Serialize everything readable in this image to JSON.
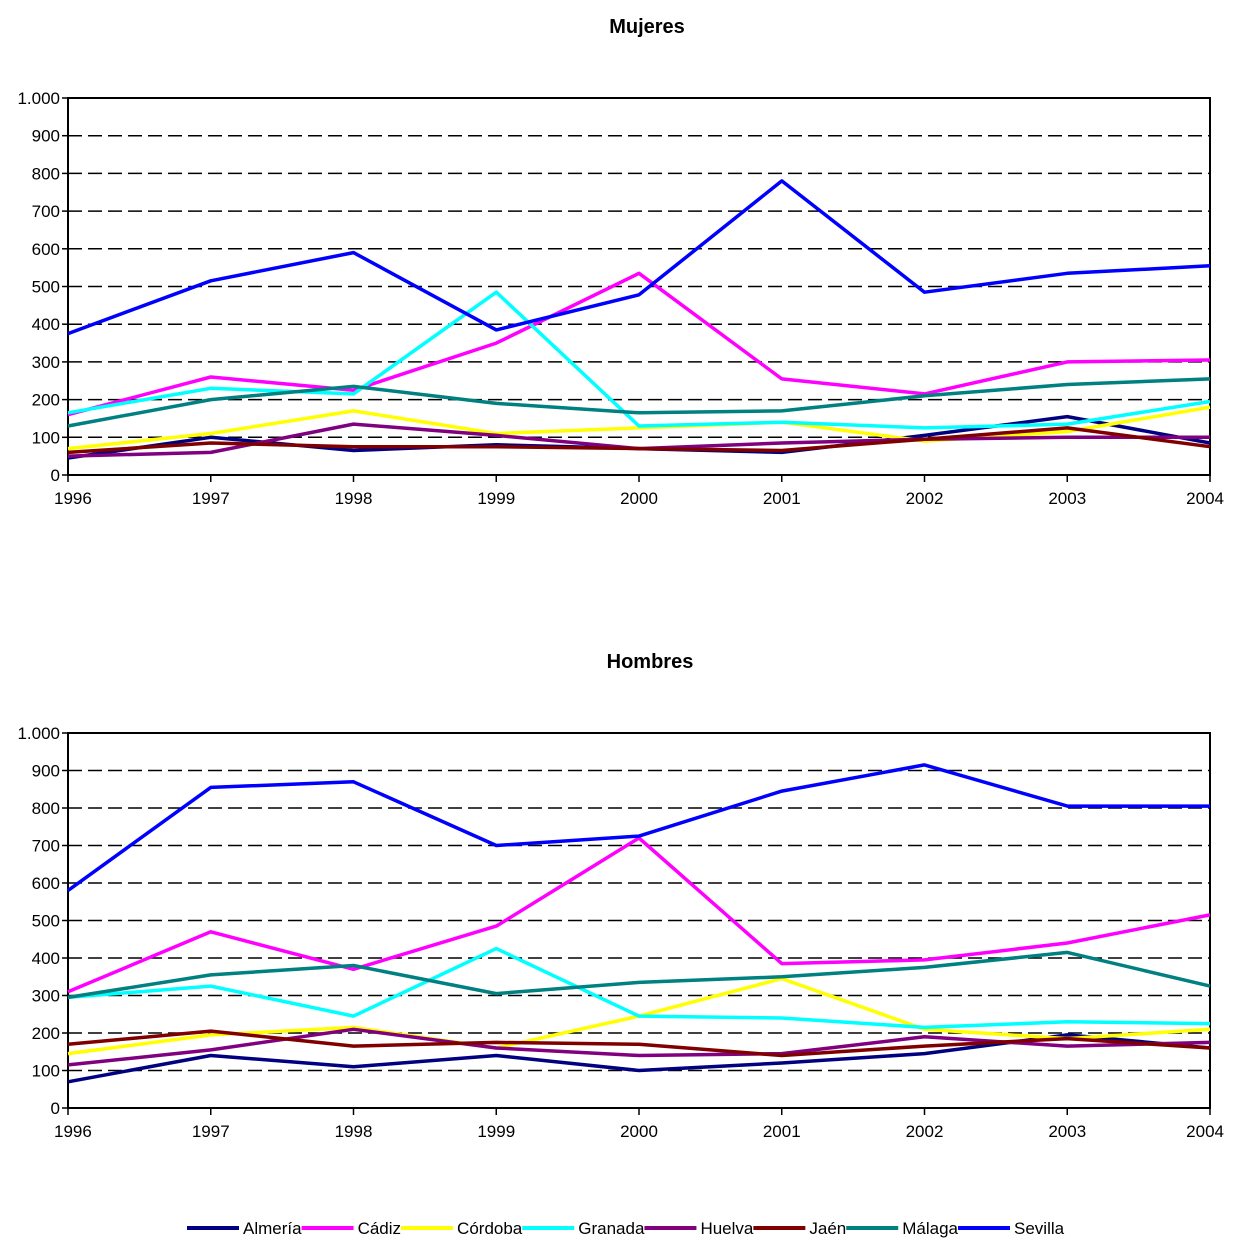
{
  "chart_data": [
    {
      "type": "line",
      "title": "Mujeres",
      "x": [
        "1996",
        "1997",
        "1998",
        "1999",
        "2000",
        "2001",
        "2002",
        "2003",
        "2004"
      ],
      "ylim": [
        0,
        1000
      ],
      "yticks": [
        0,
        100,
        200,
        300,
        400,
        500,
        600,
        700,
        800,
        900,
        1000
      ],
      "ytick_labels": [
        "0",
        "100",
        "200",
        "300",
        "400",
        "500",
        "600",
        "700",
        "800",
        "900",
        "1.000"
      ],
      "grid": "dashed horizontal",
      "series": [
        {
          "name": "Almería",
          "color": "#000080",
          "values": [
            45,
            100,
            65,
            80,
            70,
            60,
            105,
            155,
            85
          ]
        },
        {
          "name": "Cádiz",
          "color": "#ff00ff",
          "values": [
            160,
            260,
            225,
            350,
            535,
            255,
            215,
            300,
            305
          ]
        },
        {
          "name": "Córdoba",
          "color": "#ffff00",
          "values": [
            70,
            110,
            170,
            110,
            125,
            140,
            90,
            115,
            180
          ]
        },
        {
          "name": "Granada",
          "color": "#00ffff",
          "values": [
            165,
            230,
            215,
            485,
            130,
            140,
            125,
            135,
            195
          ]
        },
        {
          "name": "Huelva",
          "color": "#800080",
          "values": [
            50,
            60,
            135,
            105,
            70,
            85,
            95,
            100,
            100
          ]
        },
        {
          "name": "Jaén",
          "color": "#800000",
          "values": [
            60,
            85,
            75,
            75,
            70,
            65,
            95,
            125,
            75
          ]
        },
        {
          "name": "Málaga",
          "color": "#008080",
          "values": [
            130,
            200,
            235,
            190,
            165,
            170,
            210,
            240,
            255
          ]
        },
        {
          "name": "Sevilla",
          "color": "#0000ff",
          "values": [
            375,
            515,
            590,
            385,
            478,
            780,
            485,
            535,
            555
          ]
        }
      ]
    },
    {
      "type": "line",
      "title": "Hombres",
      "x": [
        "1996",
        "1997",
        "1998",
        "1999",
        "2000",
        "2001",
        "2002",
        "2003",
        "2004"
      ],
      "ylim": [
        0,
        1000
      ],
      "yticks": [
        0,
        100,
        200,
        300,
        400,
        500,
        600,
        700,
        800,
        900,
        1000
      ],
      "ytick_labels": [
        "0",
        "100",
        "200",
        "300",
        "400",
        "500",
        "600",
        "700",
        "800",
        "900",
        "1.000"
      ],
      "grid": "dashed horizontal",
      "series": [
        {
          "name": "Almería",
          "color": "#000080",
          "values": [
            70,
            140,
            110,
            140,
            100,
            120,
            145,
            195,
            160
          ]
        },
        {
          "name": "Cádiz",
          "color": "#ff00ff",
          "values": [
            310,
            470,
            370,
            485,
            720,
            385,
            395,
            440,
            515
          ]
        },
        {
          "name": "Córdoba",
          "color": "#ffff00",
          "values": [
            145,
            195,
            215,
            160,
            245,
            345,
            210,
            185,
            210
          ]
        },
        {
          "name": "Granada",
          "color": "#00ffff",
          "values": [
            295,
            325,
            245,
            425,
            245,
            240,
            215,
            230,
            225
          ]
        },
        {
          "name": "Huelva",
          "color": "#800080",
          "values": [
            115,
            155,
            210,
            160,
            140,
            145,
            190,
            165,
            175
          ]
        },
        {
          "name": "Jaén",
          "color": "#800000",
          "values": [
            170,
            205,
            165,
            175,
            170,
            140,
            165,
            185,
            160
          ]
        },
        {
          "name": "Málaga",
          "color": "#008080",
          "values": [
            295,
            355,
            380,
            305,
            335,
            350,
            375,
            415,
            325
          ]
        },
        {
          "name": "Sevilla",
          "color": "#0000ff",
          "values": [
            580,
            855,
            870,
            700,
            725,
            845,
            915,
            805,
            805
          ]
        }
      ]
    }
  ],
  "legend": {
    "placement": "bottom",
    "items": [
      {
        "label": "Almería",
        "color": "#000080"
      },
      {
        "label": "Cádiz",
        "color": "#ff00ff"
      },
      {
        "label": "Córdoba",
        "color": "#ffff00"
      },
      {
        "label": "Granada",
        "color": "#00ffff"
      },
      {
        "label": "Huelva",
        "color": "#800080"
      },
      {
        "label": "Jaén",
        "color": "#800000"
      },
      {
        "label": "Málaga",
        "color": "#008080"
      },
      {
        "label": "Sevilla",
        "color": "#0000ff"
      }
    ]
  }
}
